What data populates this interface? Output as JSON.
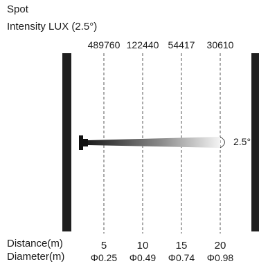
{
  "title": "Spot",
  "subtitle": "Intensity LUX (2.5°)",
  "lux_values": [
    "489760",
    "122440",
    "54417",
    "30610"
  ],
  "angle_label": "2.5°",
  "distance_label": "Distance(m)",
  "diameter_label": "Diameter(m)",
  "distances": [
    "5",
    "10",
    "15",
    "20"
  ],
  "diameters": [
    "Φ0.25",
    "Φ0.49",
    "Φ0.74",
    "Φ0.98"
  ]
}
